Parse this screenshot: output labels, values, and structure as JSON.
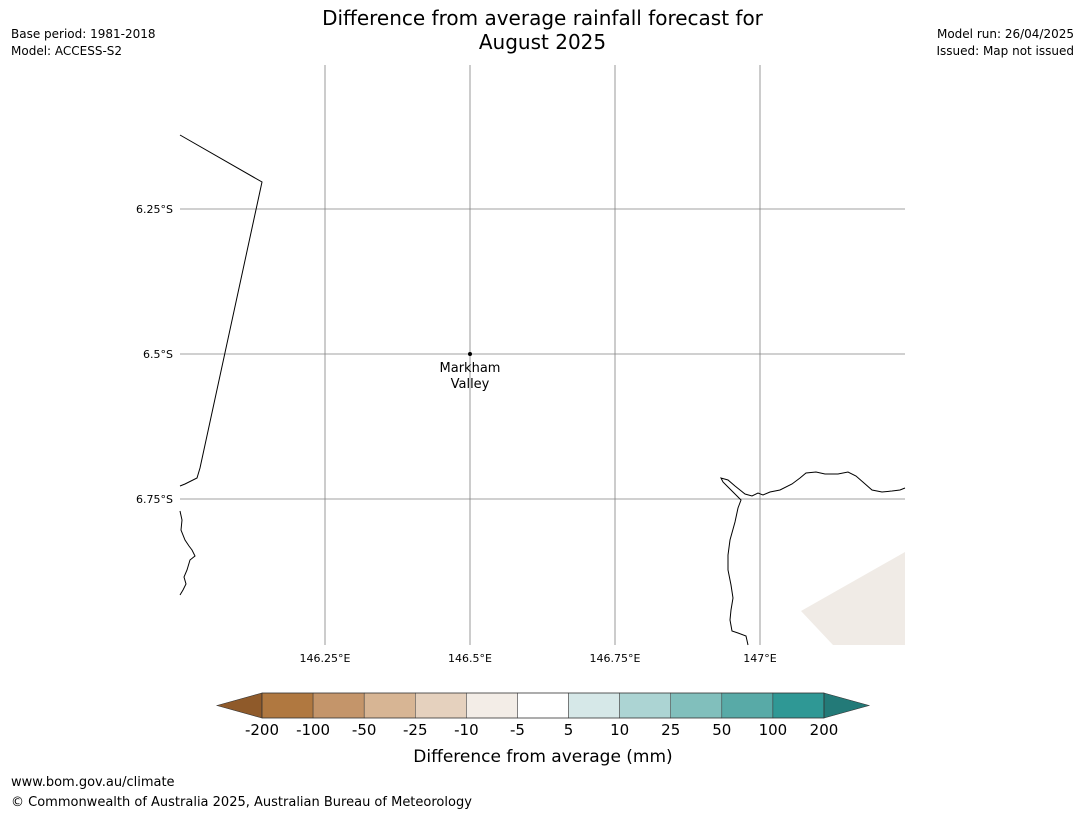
{
  "header": {
    "title_line1": "Difference from average rainfall forecast for",
    "title_line2": "August 2025",
    "base_period": "Base period: 1981-2018",
    "model": "Model: ACCESS-S2",
    "model_run": "Model run: 26/04/2025",
    "issued": "Issued: Map not issued"
  },
  "map": {
    "lat_labels": [
      "6.25°S",
      "6.5°S",
      "6.75°S"
    ],
    "lon_labels": [
      "146.25°E",
      "146.5°E",
      "146.75°E",
      "147°E"
    ],
    "location": {
      "name_line1": "Markham",
      "name_line2": "Valley",
      "lat": -6.5,
      "lon": 146.5
    },
    "data_fill_color": "#f0ebe6",
    "grid_color": "#808080",
    "coastline_color": "#000000"
  },
  "colorbar": {
    "title": "Difference from average (mm)",
    "tick_labels": [
      "-200",
      "-100",
      "-50",
      "-25",
      "-10",
      "-5",
      "5",
      "10",
      "25",
      "50",
      "100",
      "200"
    ],
    "colors": [
      "#8f5a2a",
      "#b07840",
      "#c4956a",
      "#d7b594",
      "#e5d1be",
      "#f3ede7",
      "#ffffff",
      "#d6e8e8",
      "#acd4d3",
      "#81bfbc",
      "#58aaa7",
      "#2f9895",
      "#237a78"
    ]
  },
  "footer": {
    "website": "www.bom.gov.au/climate",
    "copyright": "© Commonwealth of Australia 2025, Australian Bureau of Meteorology"
  }
}
